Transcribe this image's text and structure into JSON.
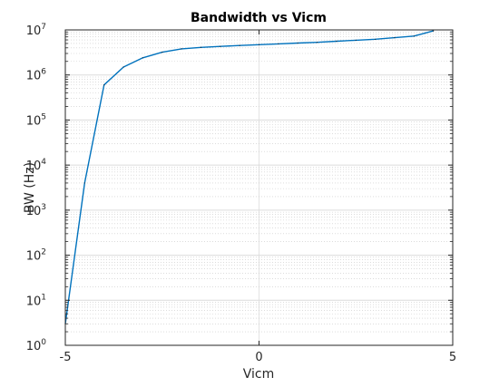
{
  "chart_data": {
    "type": "line",
    "title": "Bandwidth vs Vicm",
    "xlabel": "Vicm",
    "ylabel": "BW (Hz)",
    "xlim": [
      -5,
      5
    ],
    "ylim": [
      1,
      10000000
    ],
    "yscale": "log",
    "grid": "on (major and minor)",
    "x_ticks": [
      "-5",
      "0",
      "5"
    ],
    "y_ticks": [
      {
        "base": "10",
        "exp": "0"
      },
      {
        "base": "10",
        "exp": "1"
      },
      {
        "base": "10",
        "exp": "2"
      },
      {
        "base": "10",
        "exp": "3"
      },
      {
        "base": "10",
        "exp": "4"
      },
      {
        "base": "10",
        "exp": "5"
      },
      {
        "base": "10",
        "exp": "6"
      },
      {
        "base": "10",
        "exp": "7"
      }
    ],
    "series": [
      {
        "color": "#0072bd",
        "x": [
          -5,
          -4.5,
          -4,
          -3.5,
          -3,
          -2.5,
          -2,
          -1.5,
          -1,
          -0.5,
          0,
          0.5,
          1,
          1.5,
          2,
          2.5,
          3,
          3.5,
          4,
          4.5
        ],
        "y": [
          3,
          4000,
          600000,
          1500000,
          2400000,
          3200000,
          3800000,
          4100000,
          4300000,
          4500000,
          4700000,
          4900000,
          5100000,
          5300000,
          5600000,
          5900000,
          6200000,
          6700000,
          7300000,
          9500000
        ]
      }
    ]
  }
}
